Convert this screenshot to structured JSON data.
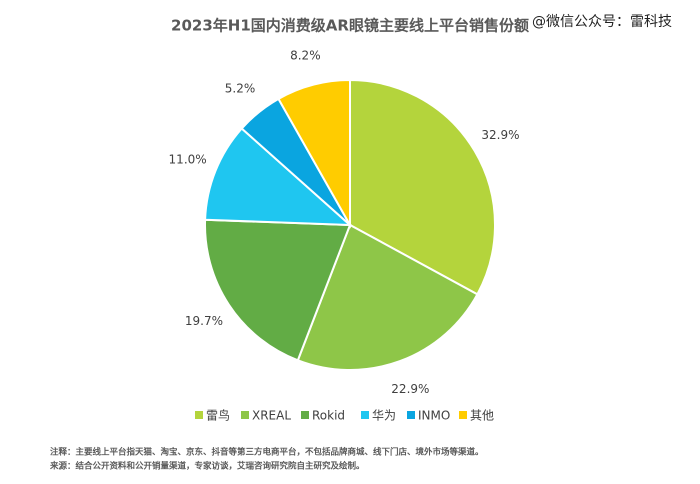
{
  "chart_data": {
    "type": "pie",
    "title": "2023年H1国内消费级AR眼镜主要线上平台销售份额",
    "watermark": "@微信公众号：雷科技",
    "categories": [
      "雷鸟",
      "XREAL",
      "Rokid",
      "华为",
      "INMO",
      "其他"
    ],
    "values": [
      32.9,
      22.9,
      19.7,
      11.0,
      5.2,
      8.2
    ],
    "value_labels": [
      "32.9%",
      "22.9%",
      "19.7%",
      "11.0%",
      "5.2%",
      "8.2%"
    ],
    "colors": [
      "#b4d43c",
      "#8ec648",
      "#62ac45",
      "#1fc6f0",
      "#0aa5e0",
      "#ffcc00"
    ],
    "notes": [
      "注释：主要线上平台指天猫、淘宝、京东、抖音等第三方电商平台，不包括品牌商城、线下门店、境外市场等渠道。",
      "来源：结合公开资料和公开销量渠道，专家访谈，艾瑞咨询研究院自主研究及绘制。"
    ]
  }
}
